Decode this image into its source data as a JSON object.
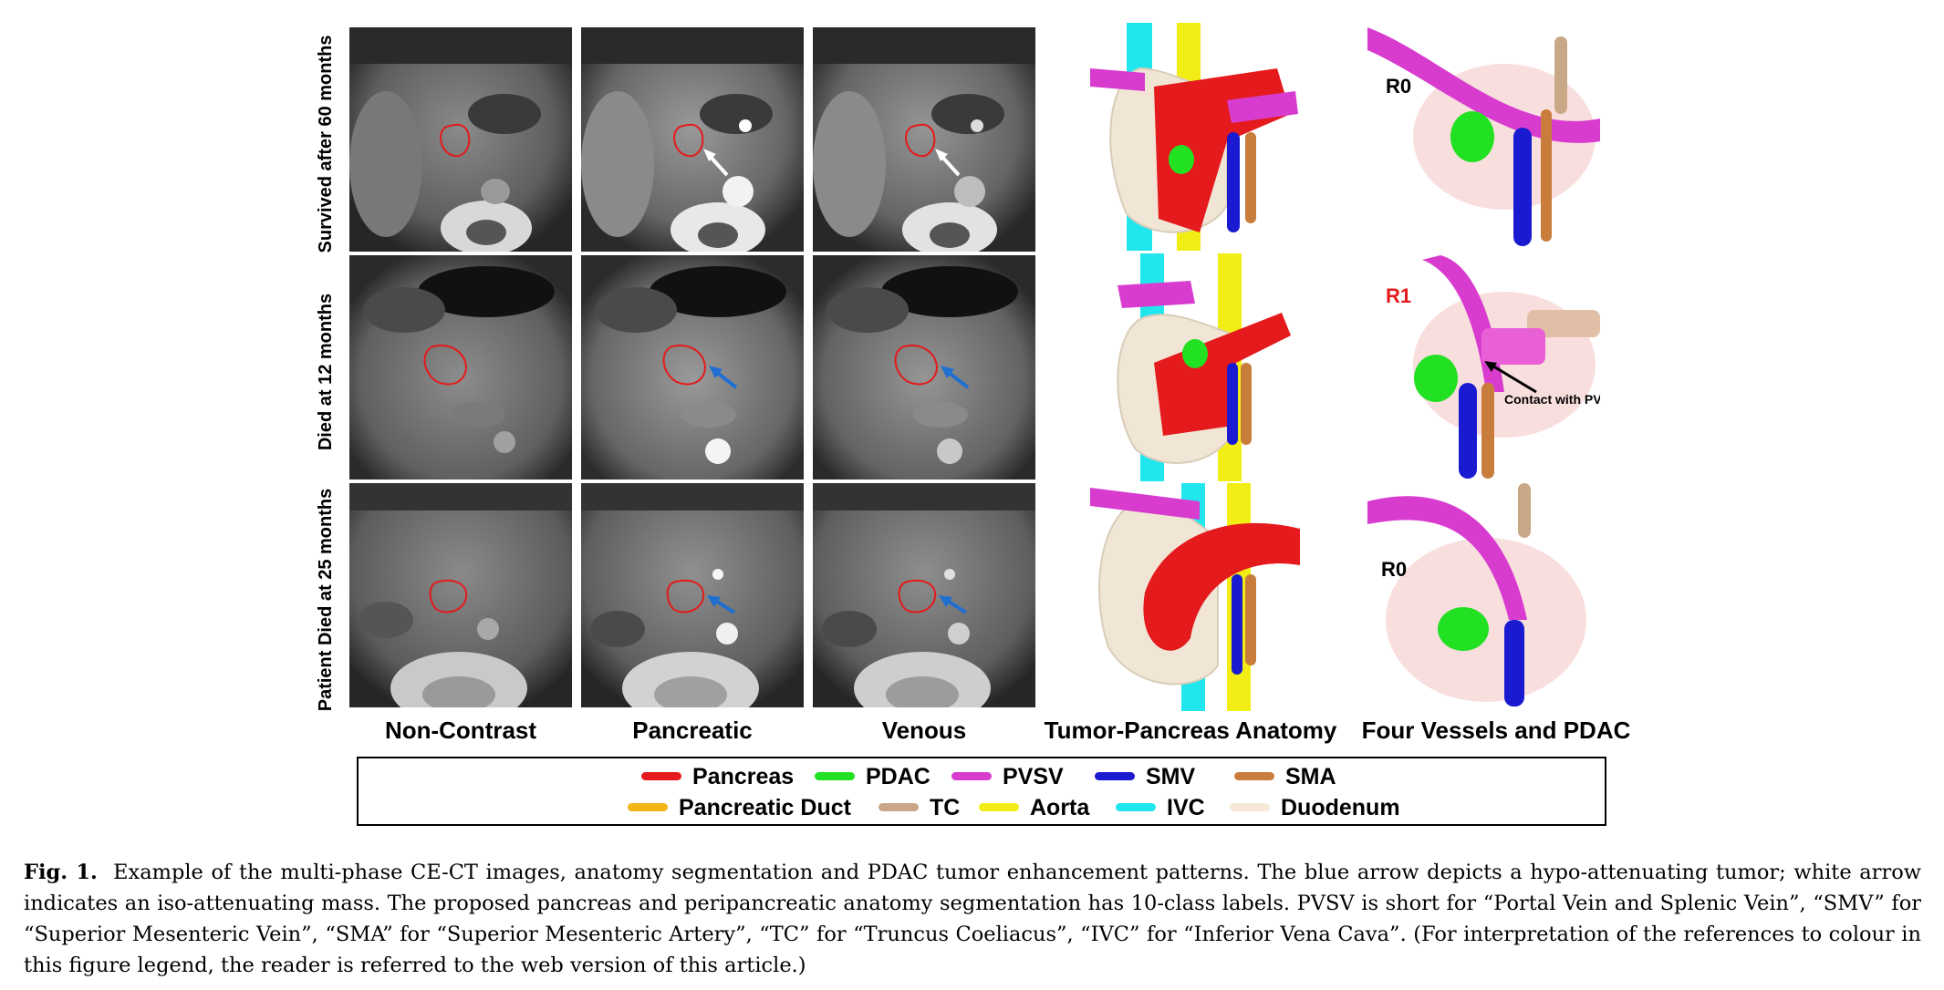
{
  "rows": [
    {
      "label": "Survived after 60 months",
      "arrow": "white",
      "tag": "R0"
    },
    {
      "label": "Died at 12 months",
      "arrow": "blue",
      "tag": "R1",
      "annotation": "Contact with PVSV"
    },
    {
      "label": "Patient Died at 25 months",
      "arrow": "blue",
      "tag": "R0"
    }
  ],
  "columns": [
    "Non-Contrast",
    "Pancreatic",
    "Venous",
    "Tumor-Pancreas Anatomy",
    "Four Vessels and PDAC"
  ],
  "legend": [
    {
      "name": "Pancreas",
      "color": "#e41a1c"
    },
    {
      "name": "PDAC",
      "color": "#22e022"
    },
    {
      "name": "PVSV",
      "color": "#d83ccf"
    },
    {
      "name": "SMV",
      "color": "#1a1ad0"
    },
    {
      "name": "SMA",
      "color": "#c87d3c"
    },
    {
      "name": "Pancreatic Duct",
      "color": "#f4b516"
    },
    {
      "name": "TC",
      "color": "#c9a888"
    },
    {
      "name": "Aorta",
      "color": "#f2ee15"
    },
    {
      "name": "IVC",
      "color": "#22e6ee"
    },
    {
      "name": "Duodenum",
      "color": "#f6e9d6"
    }
  ],
  "colors": {
    "tumor_contour": "#e41a1c",
    "hypo_arrow": "#1f6fd1",
    "iso_arrow": "#ffffff",
    "r1_tag": "#e41a1c"
  },
  "caption": {
    "label": "Fig. 1.",
    "text": "Example of the multi-phase CE-CT images, anatomy segmentation and PDAC tumor enhancement patterns. The blue arrow depicts a hypo-attenuating tumor; white arrow indicates an iso-attenuating mass. The proposed pancreas and peripancreatic anatomy segmentation has 10-class labels. PVSV is short for “Portal Vein and Splenic Vein”, “SMV” for “Superior Mesenteric Vein”, “SMA” for “Superior Mesenteric Artery”, “TC” for “Truncus Coeliacus”, “IVC” for “Inferior Vena Cava”. (For interpretation of the references to colour in this figure legend, the reader is referred to the web version of this article.)"
  }
}
